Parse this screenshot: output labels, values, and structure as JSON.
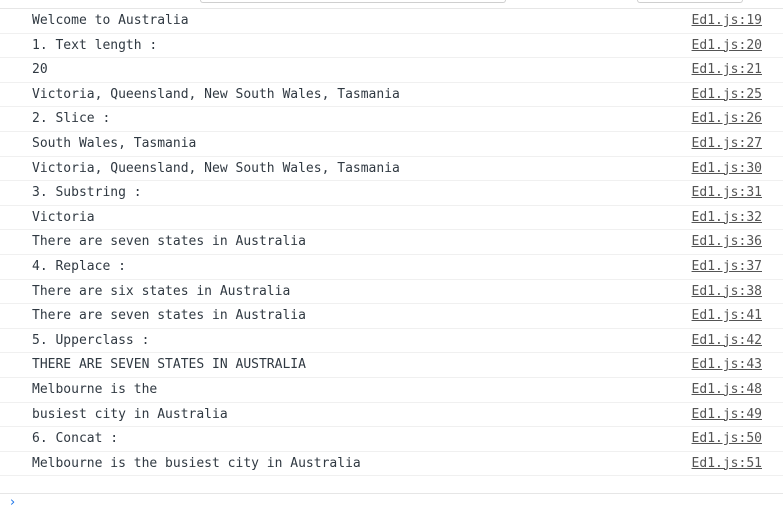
{
  "console": {
    "messages": [
      {
        "text": "Welcome to Australia",
        "source": "Ed1.js:19"
      },
      {
        "text": "1. Text length :",
        "source": "Ed1.js:20"
      },
      {
        "text": "20",
        "source": "Ed1.js:21"
      },
      {
        "text": "Victoria, Queensland, New South Wales, Tasmania",
        "source": "Ed1.js:25"
      },
      {
        "text": "2. Slice :",
        "source": "Ed1.js:26"
      },
      {
        "text": "South Wales, Tasmania",
        "source": "Ed1.js:27"
      },
      {
        "text": "Victoria, Queensland, New South Wales, Tasmania",
        "source": "Ed1.js:30"
      },
      {
        "text": "3. Substring :",
        "source": "Ed1.js:31"
      },
      {
        "text": "Victoria",
        "source": "Ed1.js:32"
      },
      {
        "text": "There are seven states in Australia",
        "source": "Ed1.js:36"
      },
      {
        "text": "4. Replace :",
        "source": "Ed1.js:37"
      },
      {
        "text": "There are six states in Australia",
        "source": "Ed1.js:38"
      },
      {
        "text": "There are seven states in Australia",
        "source": "Ed1.js:41"
      },
      {
        "text": "5. Upperclass :",
        "source": "Ed1.js:42"
      },
      {
        "text": "THERE ARE SEVEN STATES IN AUSTRALIA",
        "source": "Ed1.js:43"
      },
      {
        "text": "Melbourne is the",
        "source": "Ed1.js:48"
      },
      {
        "text": "busiest city in Australia",
        "source": "Ed1.js:49"
      },
      {
        "text": "6. Concat :",
        "source": "Ed1.js:50"
      },
      {
        "text": "Melbourne is the busiest city in Australia",
        "source": "Ed1.js:51"
      }
    ],
    "prompt": {
      "caret_icon": "chevron-right-icon",
      "caret_glyph": "›",
      "value": ""
    }
  }
}
